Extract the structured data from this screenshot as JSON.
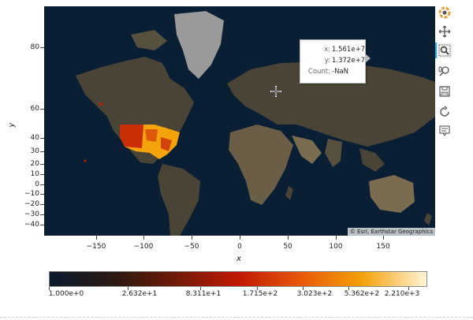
{
  "plot": {
    "x_label": "x",
    "y_label": "y",
    "x_ticks": [
      "−150",
      "−100",
      "−50",
      "0",
      "50",
      "100",
      "150"
    ],
    "y_ticks": [
      "80",
      "60",
      "40",
      "30",
      "20",
      "10",
      "0",
      "−10",
      "−20",
      "−30",
      "−40"
    ],
    "attribution": "© Esri, Earthstar Geographics"
  },
  "tooltip": {
    "x_key": "x:",
    "x_value": "1.561e+7",
    "y_key": "y:",
    "y_value": "1.372e+7",
    "count_key": "Count:",
    "count_value": "-NaN"
  },
  "toolbar": {
    "tools": [
      "bokeh-logo-icon",
      "pan-icon",
      "box-zoom-icon",
      "wheel-zoom-icon",
      "save-icon",
      "reset-icon",
      "hover-icon"
    ]
  },
  "colorbar": {
    "labels": [
      "1.000e+0",
      "2.632e+1",
      "8.311e+1",
      "1.715e+2",
      "3.023e+2",
      "5.362e+2",
      "2.210e+3"
    ],
    "colors": [
      "#0b1a2e",
      "#2a1a12",
      "#6e1a08",
      "#c01a06",
      "#e85a06",
      "#f5a10a",
      "#fff4d6"
    ]
  },
  "map": {
    "ocean_color": "#0a1f33",
    "land_color": "#4a4436",
    "ice_color": "#9a9a9a",
    "heat_color_low": "#c21a07",
    "heat_color_high": "#f5a30a"
  }
}
